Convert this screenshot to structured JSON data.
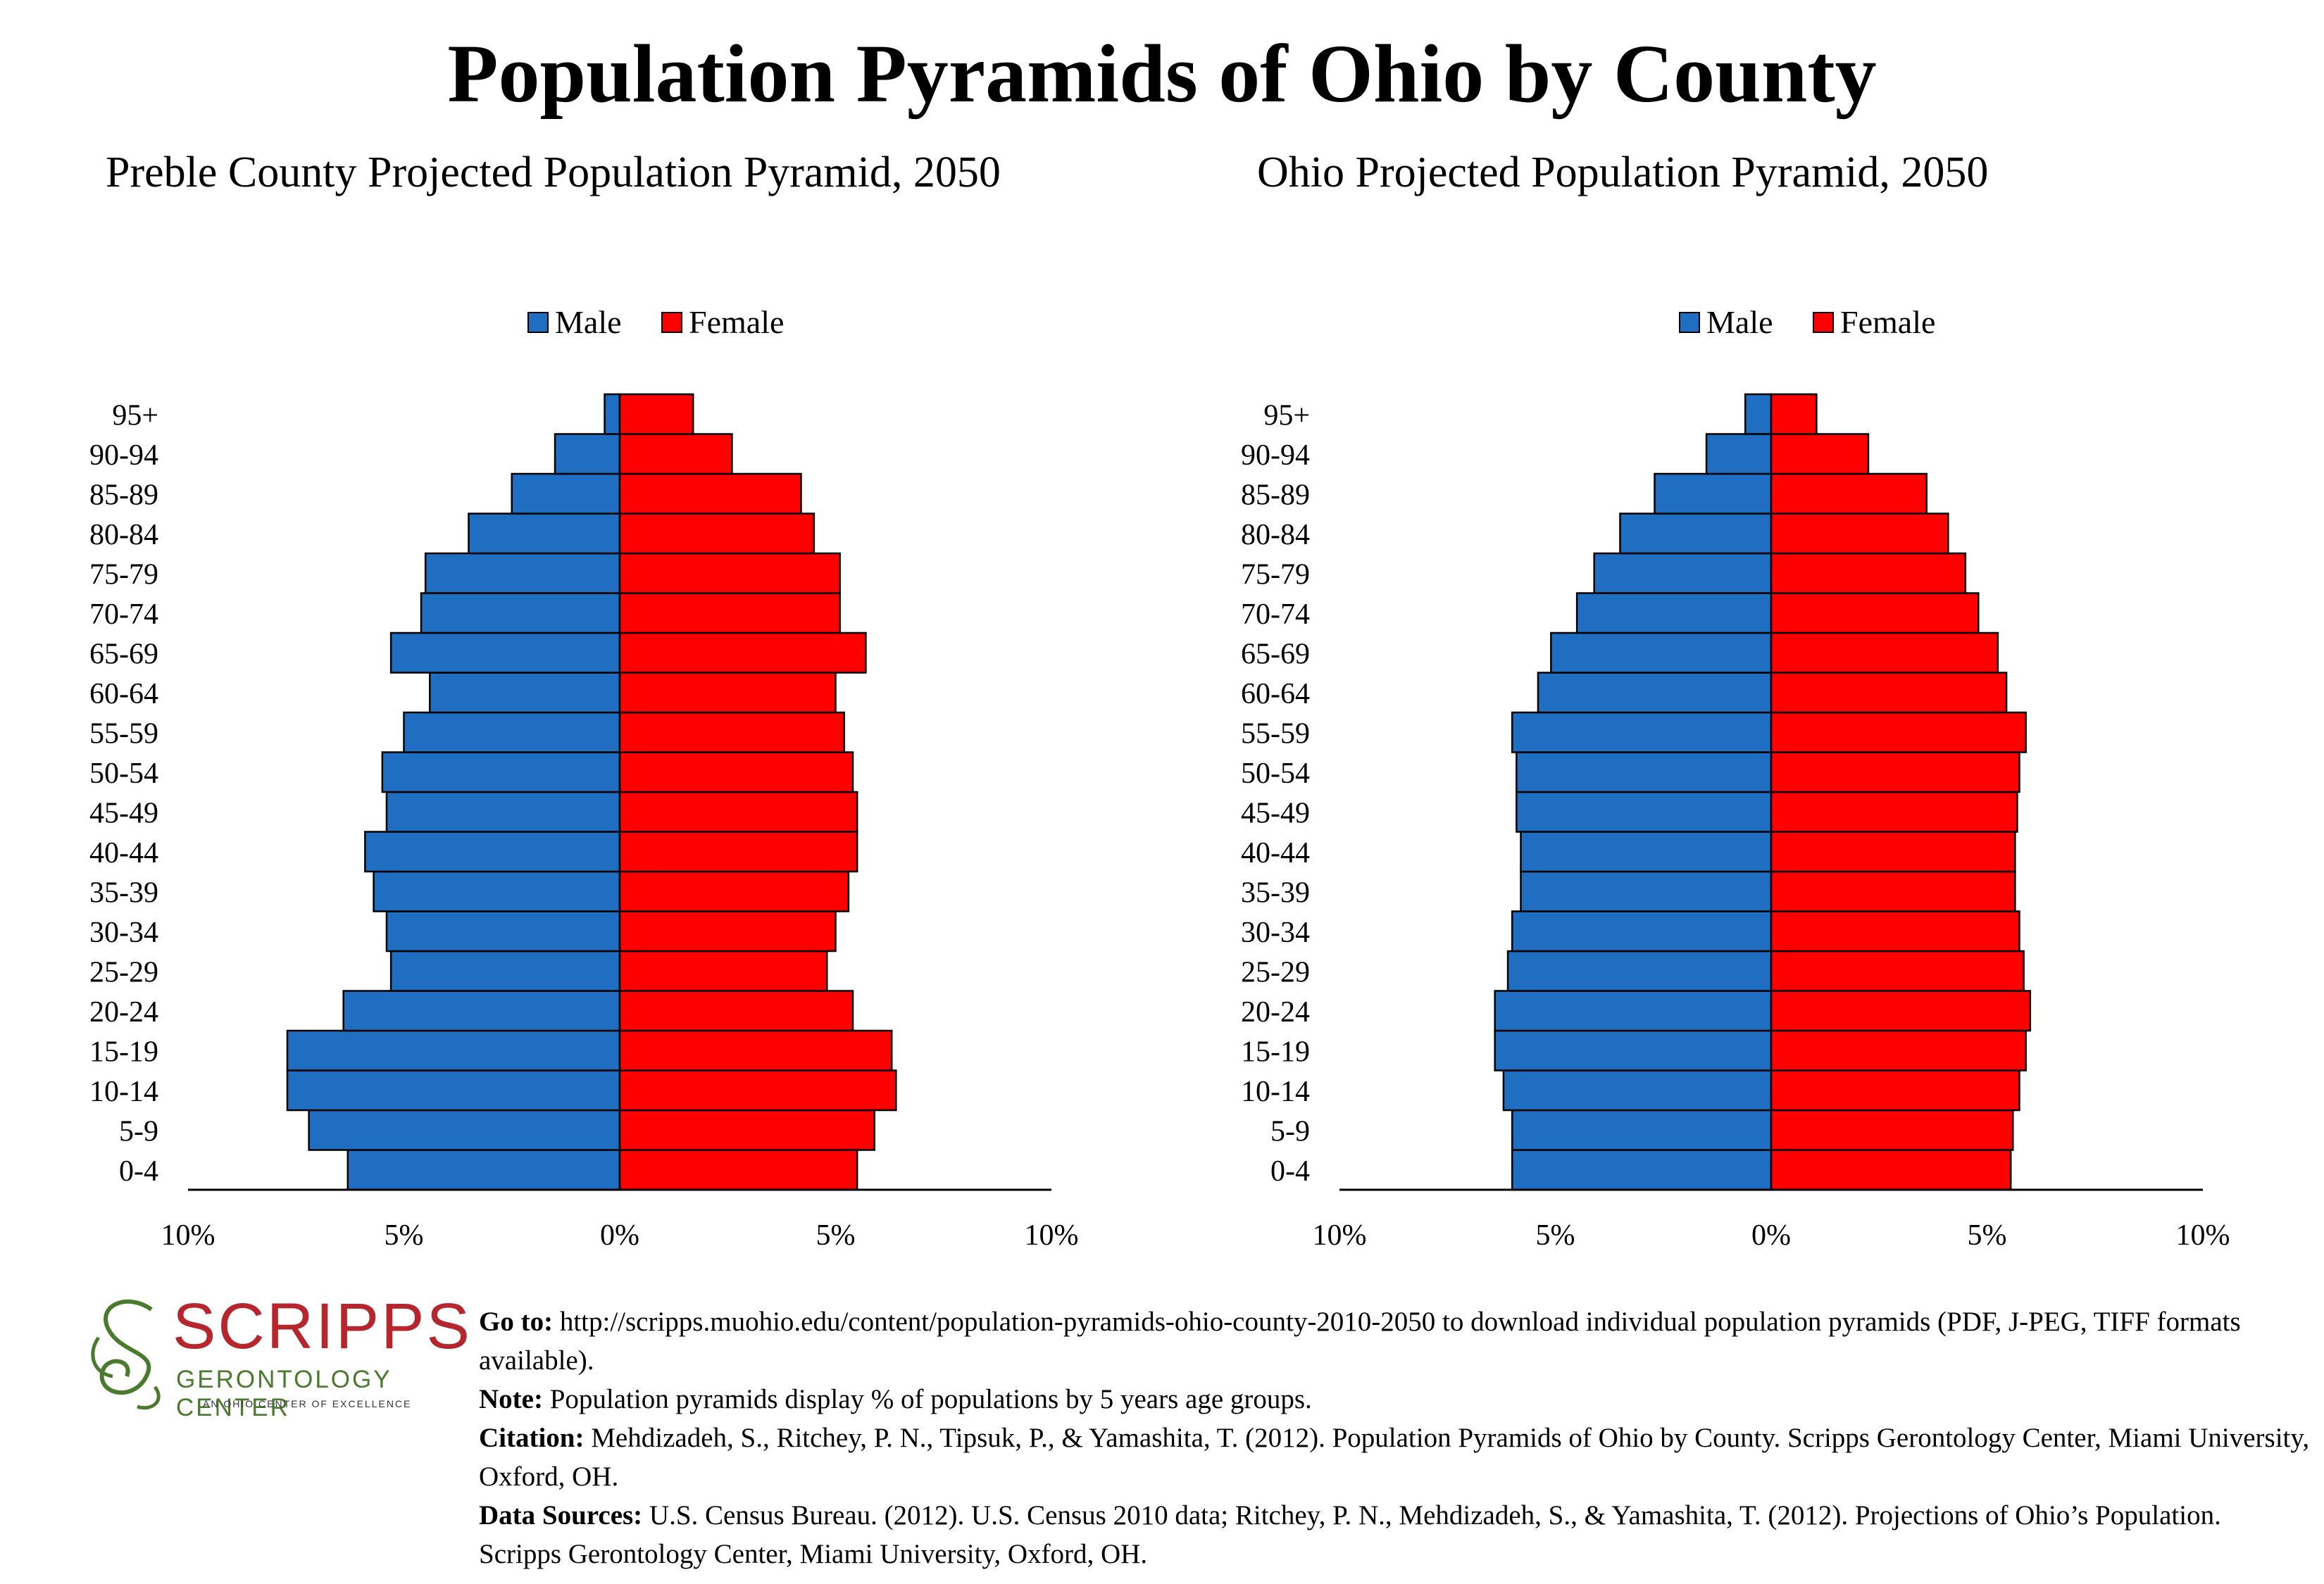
{
  "title": "Population Pyramids of Ohio by County",
  "colors": {
    "male": "#1f6ec2",
    "female": "#ff0000",
    "outline": "#000000"
  },
  "chart_data": [
    {
      "type": "bar",
      "orientation": "horizontal",
      "title": "Preble County Projected Population Pyramid, 2050",
      "legend": {
        "position": "top",
        "entries": [
          "Male",
          "Female"
        ]
      },
      "categories": [
        "0-4",
        "5-9",
        "10-14",
        "15-19",
        "20-24",
        "25-29",
        "30-34",
        "35-39",
        "40-44",
        "45-49",
        "50-54",
        "55-59",
        "60-64",
        "65-69",
        "70-74",
        "75-79",
        "80-84",
        "85-89",
        "90-94",
        "95+"
      ],
      "series": [
        {
          "name": "Male",
          "values": [
            6.3,
            7.2,
            7.7,
            7.7,
            6.4,
            5.3,
            5.4,
            5.7,
            5.9,
            5.4,
            5.5,
            5.0,
            4.4,
            5.3,
            4.6,
            4.5,
            3.5,
            2.5,
            1.5,
            0.35
          ]
        },
        {
          "name": "Female",
          "values": [
            5.5,
            5.9,
            6.4,
            6.3,
            5.4,
            4.8,
            5.0,
            5.3,
            5.5,
            5.5,
            5.4,
            5.2,
            5.0,
            5.7,
            5.1,
            5.1,
            4.5,
            4.2,
            2.6,
            1.7
          ]
        }
      ],
      "xlim": [
        -10,
        10
      ],
      "xticks": [
        "10%",
        "5%",
        "0%",
        "5%",
        "10%"
      ],
      "grid": false
    },
    {
      "type": "bar",
      "orientation": "horizontal",
      "title": "Ohio Projected Population Pyramid, 2050",
      "legend": {
        "position": "top",
        "entries": [
          "Male",
          "Female"
        ]
      },
      "categories": [
        "0-4",
        "5-9",
        "10-14",
        "15-19",
        "20-24",
        "25-29",
        "30-34",
        "35-39",
        "40-44",
        "45-49",
        "50-54",
        "55-59",
        "60-64",
        "65-69",
        "70-74",
        "75-79",
        "80-84",
        "85-89",
        "90-94",
        "95+"
      ],
      "series": [
        {
          "name": "Male",
          "values": [
            6.0,
            6.0,
            6.2,
            6.4,
            6.4,
            6.1,
            6.0,
            5.8,
            5.8,
            5.9,
            5.9,
            6.0,
            5.4,
            5.1,
            4.5,
            4.1,
            3.5,
            2.7,
            1.5,
            0.6
          ]
        },
        {
          "name": "Female",
          "values": [
            5.55,
            5.6,
            5.75,
            5.9,
            6.0,
            5.85,
            5.75,
            5.65,
            5.65,
            5.7,
            5.75,
            5.9,
            5.45,
            5.25,
            4.8,
            4.5,
            4.1,
            3.6,
            2.25,
            1.05
          ]
        }
      ],
      "xlim": [
        -10,
        10
      ],
      "xticks": [
        "10%",
        "5%",
        "0%",
        "5%",
        "10%"
      ],
      "grid": false
    }
  ],
  "footer": {
    "logo": {
      "word": "SCRIPPS",
      "sub": "GERONTOLOGY CENTER",
      "tag": "AN OHIO CENTER OF EXCELLENCE"
    },
    "goto_label": "Go to:",
    "goto_text": " http://scripps.muohio.edu/content/population-pyramids-ohio-county-2010-2050 to download individual population pyramids (PDF, J-PEG, TIFF formats available).",
    "note_label": "Note:",
    "note_text": " Population pyramids display % of populations by 5 years age groups.",
    "citation_label": "Citation:",
    "citation_text": " Mehdizadeh, S., Ritchey, P. N., Tipsuk, P., & Yamashita, T. (2012). Population Pyramids of Ohio by County. Scripps Gerontology Center, Miami University, Oxford, OH.",
    "sources_label": "Data Sources:",
    "sources_text": " U.S. Census Bureau. (2012). U.S. Census 2010 data; Ritchey, P. N., Mehdizadeh, S., & Yamashita, T. (2012). Projections of Ohio’s Population. Scripps Gerontology Center, Miami University, Oxford, OH."
  }
}
